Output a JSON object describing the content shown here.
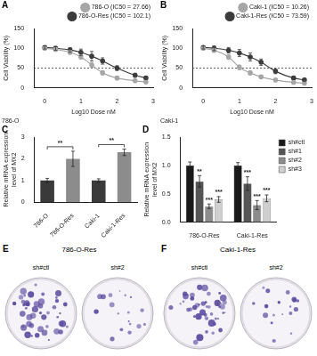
{
  "chart_data": [
    {
      "panel": "A",
      "type": "line",
      "title": "786-O",
      "x_label": "Log10 Dose nM",
      "y_label": "Cell Viability (%)",
      "x": [
        0,
        0.3,
        0.7,
        1.0,
        1.3,
        1.6,
        2.0,
        2.5,
        2.8
      ],
      "series": [
        {
          "name": "786-O (IC50 = 27.66)",
          "color": "#a6a6a6",
          "marker": "circle",
          "values": [
            100,
            97,
            90,
            78,
            58,
            38,
            25,
            18,
            15
          ],
          "errors": [
            3,
            4,
            5,
            5,
            6,
            5,
            4,
            3,
            3
          ]
        },
        {
          "name": "786-O-Res (IC50 = 102.1)",
          "color": "#3c3c3c",
          "marker": "circle",
          "values": [
            102,
            100,
            96,
            90,
            80,
            68,
            50,
            32,
            25
          ],
          "errors": [
            4,
            5,
            6,
            8,
            12,
            8,
            6,
            5,
            4
          ]
        }
      ],
      "xlim": [
        -0.3,
        3
      ],
      "xticks": [
        0,
        1,
        2,
        3
      ],
      "ylim": [
        0,
        150
      ],
      "yticks": [
        0,
        50,
        100,
        150
      ],
      "reference_line": 50,
      "grid": false,
      "legend": "top"
    },
    {
      "panel": "B",
      "type": "line",
      "title": "Caki-1",
      "x_label": "Log10 Dose nM",
      "y_label": "Cell Viability (%)",
      "x": [
        0,
        0.3,
        0.7,
        1.0,
        1.3,
        1.6,
        2.0,
        2.5,
        2.8
      ],
      "series": [
        {
          "name": "Caki-1 (IC50 = 10.26)",
          "color": "#a6a6a6",
          "marker": "circle",
          "values": [
            100,
            95,
            78,
            52,
            38,
            28,
            20,
            14,
            12
          ],
          "errors": [
            3,
            5,
            6,
            6,
            5,
            4,
            3,
            3,
            2
          ]
        },
        {
          "name": "Caki-1-Res (IC50 = 73.59)",
          "color": "#3c3c3c",
          "marker": "circle",
          "values": [
            102,
            100,
            95,
            88,
            78,
            65,
            42,
            25,
            20
          ],
          "errors": [
            4,
            6,
            7,
            9,
            10,
            8,
            6,
            4,
            4
          ]
        }
      ],
      "xlim": [
        -0.3,
        3
      ],
      "xticks": [
        0,
        1,
        2,
        3
      ],
      "ylim": [
        0,
        150
      ],
      "yticks": [
        0,
        50,
        100,
        150
      ],
      "reference_line": 50,
      "grid": false,
      "legend": "top"
    },
    {
      "panel": "C",
      "type": "bar",
      "y_label": [
        "Relative mRNA expression",
        "level of MX2"
      ],
      "categories": [
        "786-O",
        "786-O-Res",
        "Caki-1",
        "Caki-1-Res"
      ],
      "values": [
        1.0,
        2.0,
        1.0,
        2.3
      ],
      "errors": [
        0.1,
        0.35,
        0.08,
        0.15
      ],
      "colors": [
        "#3a3a3a",
        "#8c8c8c",
        "#3a3a3a",
        "#8c8c8c"
      ],
      "significance": [
        {
          "from": 0,
          "to": 1,
          "text": "**"
        },
        {
          "from": 2,
          "to": 3,
          "text": "**"
        }
      ],
      "ylim": [
        0,
        3
      ],
      "yticks": [
        0,
        1,
        2,
        3
      ],
      "grid": false
    },
    {
      "panel": "D",
      "type": "bar",
      "y_label": [
        "Relative mRNA expression",
        "level of MX2"
      ],
      "categories": [
        "786-O-Res",
        "Caki-1-Res"
      ],
      "series": [
        {
          "name": "sh#ctl",
          "color": "#1a1a1a",
          "values": [
            1.0,
            1.0
          ],
          "errors": [
            0.06,
            0.05
          ]
        },
        {
          "name": "sh#1",
          "color": "#555555",
          "values": [
            0.72,
            0.68
          ],
          "errors": [
            0.1,
            0.12
          ],
          "significance": [
            "**",
            "***"
          ]
        },
        {
          "name": "sh#2",
          "color": "#8c8c8c",
          "values": [
            0.28,
            0.3
          ],
          "errors": [
            0.04,
            0.08
          ],
          "significance": [
            "***",
            "***"
          ]
        },
        {
          "name": "sh#3",
          "color": "#cfcfcf",
          "values": [
            0.4,
            0.42
          ],
          "errors": [
            0.05,
            0.06
          ],
          "significance": [
            "***",
            "***"
          ]
        }
      ],
      "ylim": [
        0,
        1.5
      ],
      "yticks": [
        {
          "value": 0,
          "label": "0.0"
        },
        {
          "value": 0.5,
          "label": "0.5"
        },
        {
          "value": 1,
          "label": "1.0"
        },
        {
          "value": 1.5,
          "label": "1.5"
        }
      ],
      "grid": false,
      "legend": "right"
    }
  ],
  "images": [
    {
      "panel": "E",
      "title": "786-O-Res",
      "labels": [
        "sh#ctl",
        "sh#2"
      ]
    },
    {
      "panel": "F",
      "title": "Caki-1-Res",
      "labels": [
        "sh#ctl",
        "sh#2"
      ]
    }
  ]
}
